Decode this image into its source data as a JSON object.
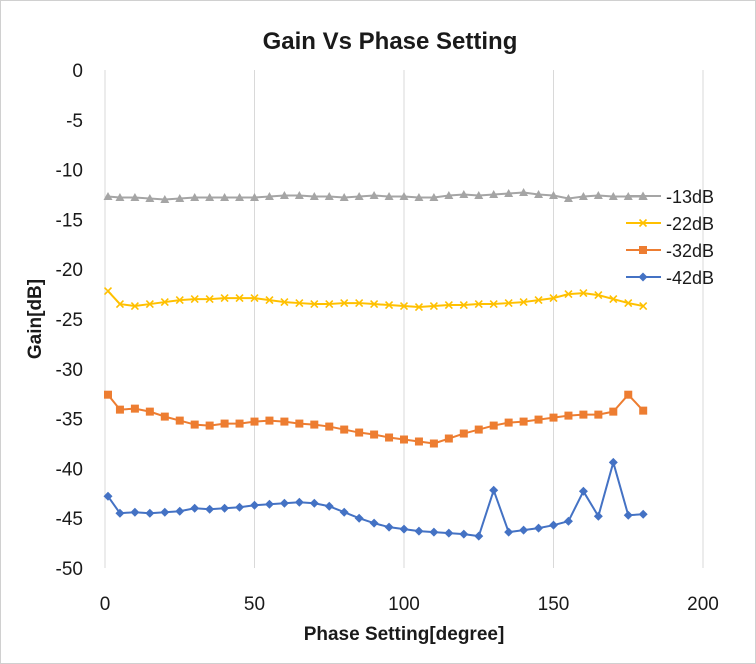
{
  "chart_data": {
    "type": "line",
    "title": "Gain Vs Phase Setting",
    "xlabel": "Phase Setting[degree]",
    "ylabel": "Gain[dB]",
    "xlim": [
      0,
      200
    ],
    "ylim": [
      -50,
      0
    ],
    "x_ticks": [
      "0",
      "50",
      "100",
      "150",
      "200"
    ],
    "y_ticks": [
      "0",
      "-5",
      "-10",
      "-15",
      "-20",
      "-25",
      "-30",
      "-35",
      "-40",
      "-45",
      "-50"
    ],
    "grid": "vertical",
    "legend_position": "right",
    "x": [
      1,
      5,
      10,
      15,
      20,
      25,
      30,
      35,
      40,
      45,
      50,
      55,
      60,
      65,
      70,
      75,
      80,
      85,
      90,
      95,
      100,
      105,
      110,
      115,
      120,
      125,
      130,
      135,
      140,
      145,
      150,
      155,
      160,
      165,
      170,
      175,
      180
    ],
    "series": [
      {
        "name": "-13dB",
        "color": "#a5a5a5",
        "marker": "triangle",
        "values": [
          -12.7,
          -12.8,
          -12.8,
          -12.9,
          -13.0,
          -12.9,
          -12.8,
          -12.8,
          -12.8,
          -12.8,
          -12.8,
          -12.7,
          -12.6,
          -12.6,
          -12.7,
          -12.7,
          -12.8,
          -12.7,
          -12.6,
          -12.7,
          -12.7,
          -12.8,
          -12.8,
          -12.6,
          -12.5,
          -12.6,
          -12.5,
          -12.4,
          -12.3,
          -12.5,
          -12.6,
          -12.9,
          -12.7,
          -12.6,
          -12.7,
          -12.7,
          -12.7
        ]
      },
      {
        "name": "-22dB",
        "color": "#ffc000",
        "marker": "x",
        "values": [
          -22.2,
          -23.5,
          -23.7,
          -23.5,
          -23.3,
          -23.1,
          -23.0,
          -23.0,
          -22.9,
          -22.9,
          -22.9,
          -23.1,
          -23.3,
          -23.4,
          -23.5,
          -23.5,
          -23.4,
          -23.4,
          -23.5,
          -23.6,
          -23.7,
          -23.8,
          -23.7,
          -23.6,
          -23.6,
          -23.5,
          -23.5,
          -23.4,
          -23.3,
          -23.1,
          -22.9,
          -22.5,
          -22.4,
          -22.6,
          -23.0,
          -23.4,
          -23.7
        ]
      },
      {
        "name": "-32dB",
        "color": "#ed7d31",
        "marker": "square",
        "values": [
          -32.6,
          -34.1,
          -34.0,
          -34.3,
          -34.8,
          -35.2,
          -35.6,
          -35.7,
          -35.5,
          -35.5,
          -35.3,
          -35.2,
          -35.3,
          -35.5,
          -35.6,
          -35.8,
          -36.1,
          -36.4,
          -36.6,
          -36.9,
          -37.1,
          -37.3,
          -37.5,
          -37.0,
          -36.5,
          -36.1,
          -35.7,
          -35.4,
          -35.3,
          -35.1,
          -34.9,
          -34.7,
          -34.6,
          -34.6,
          -34.3,
          -32.6,
          -34.2
        ]
      },
      {
        "name": "-42dB",
        "color": "#4472c4",
        "marker": "diamond",
        "values": [
          -42.8,
          -44.5,
          -44.4,
          -44.5,
          -44.4,
          -44.3,
          -44.0,
          -44.1,
          -44.0,
          -43.9,
          -43.7,
          -43.6,
          -43.5,
          -43.4,
          -43.5,
          -43.8,
          -44.4,
          -45.0,
          -45.5,
          -45.9,
          -46.1,
          -46.3,
          -46.4,
          -46.5,
          -46.6,
          -46.8,
          -42.2,
          -46.4,
          -46.2,
          -46.0,
          -45.7,
          -45.3,
          -42.3,
          -44.8,
          -39.4,
          -44.7,
          -44.6
        ]
      }
    ]
  }
}
